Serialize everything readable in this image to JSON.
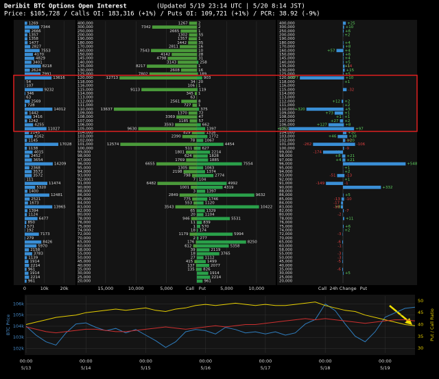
{
  "header": {
    "title": "Deribit BTC Options Open Interest",
    "updated": "(Updated 5/19 23:14 UTC | 5/20 8:14 JST)",
    "subtitle": "Price: $105,728 / Calls OI: 183,316 (+1%) / Puts OI: 109,721 (+1%) / PCR: 38.92 (-9%)"
  },
  "chart_data": [
    {
      "type": "bar_h",
      "color": "#3a8fd6",
      "xlim": [
        0,
        25000
      ],
      "xticks": [
        0,
        {
          "value": 10000,
          "label": "10k"
        },
        {
          "value": 20000,
          "label": "20k"
        }
      ],
      "values": [
        1269,
        7344,
        2666,
        1357,
        1358,
        1477,
        2827,
        7553,
        4170,
        4829,
        3401,
        8218,
        2624,
        7991,
        13616,
        54,
        107,
        9232,
        346,
        63,
        2569,
        728,
        14012,
        1442,
        3416,
        1242,
        4255,
        11027,
        2145,
        4162,
        1145,
        17028,
        1138,
        4015,
        2452,
        3654,
        14209,
        2368,
        3572,
        3572,
        111,
        11474,
        5320,
        1400,
        12481,
        2521,
        1673,
        13965,
        1394,
        1124,
        6477,
        850,
        571,
        192,
        7173,
        279,
        8426,
        5970,
        2158,
        3783,
        1139,
        1914,
        2214,
        961,
        1914,
        2214,
        961
      ]
    },
    {
      "type": "diverging_bar",
      "categories": [
        "400,000",
        "300,000",
        "250,000",
        "200,000",
        "190,000",
        "180,000",
        "170,000",
        "160,000",
        "150,000",
        "145,000",
        "140,000",
        "135,000",
        "130,000",
        "125,000",
        "120,000",
        "118,000",
        "116,000",
        "115,000",
        "114,000",
        "113,000",
        "112,000",
        "111,000",
        "110,000",
        "109,000",
        "108,000",
        "107,000",
        "106,000",
        "105,000",
        "104,000",
        "103,000",
        "102,000",
        "101,000",
        "100,000",
        "99,000",
        "98,000",
        "97,000",
        "96,000",
        "95,000",
        "94,000",
        "93,000",
        "92,000",
        "91,000",
        "90,000",
        "88,000",
        "86,000",
        "85,000",
        "84,000",
        "83,000",
        "82,000",
        "80,000",
        "78,000",
        "76,000",
        "75,000",
        "74,000",
        "72,000",
        "70,000",
        "65,000",
        "60,000",
        "58,000",
        "55,000",
        "50,000",
        "45,000",
        "40,000",
        "35,000",
        "30,000",
        "25,000",
        "20,000"
      ],
      "call_xlim": [
        0,
        16000
      ],
      "call_xticks": [
        {
          "value": 15000,
          "label": "15,000"
        },
        {
          "value": 10000,
          "label": "10,000"
        },
        {
          "value": 5000,
          "label": "5,000"
        }
      ],
      "put_xlim": [
        0,
        13000
      ],
      "put_xticks": [
        {
          "value": 5000,
          "label": "5,000"
        },
        {
          "value": 10000,
          "label": "10,000"
        }
      ],
      "series": [
        {
          "name": "Call",
          "color": "#4a9a3a",
          "values": [
            1267,
            7342,
            2665,
            1302,
            1357,
            1442,
            2811,
            7543,
            4142,
            4798,
            3143,
            8217,
            2608,
            7802,
            12713,
            34,
            106,
            9113,
            345,
            63,
            2561,
            727,
            13637,
            1370,
            3369,
            1185,
            3593,
            9630,
            829,
            2390,
            78,
            12574,
            511,
            1801,
            624,
            1769,
            6655,
            1305,
            2198,
            798,
            7,
            6482,
            1001,
            3,
            2849,
            775,
            553,
            3543,
            65,
            20,
            946,
            11,
            1,
            18,
            1179,
            2,
            176,
            612,
            39,
            18,
            27,
            415,
            137,
            135,
            0,
            0,
            0
          ]
        },
        {
          "name": "Put",
          "color": "#2aa04a",
          "values": [
            2,
            2,
            1,
            55,
            1,
            35,
            16,
            10,
            28,
            31,
            258,
            1,
            16,
            189,
            903,
            20,
            1,
            119,
            1,
            0,
            8,
            1,
            375,
            72,
            47,
            57,
            662,
            1397,
            1316,
            1772,
            1067,
            4454,
            627,
            2214,
            1828,
            1885,
            7554,
            1063,
            1374,
            2774,
            104,
            4992,
            4319,
            1397,
            9632,
            1746,
            1120,
            10422,
            1329,
            1104,
            5531,
            839,
            570,
            174,
            5994,
            277,
            8250,
            5358,
            2119,
            3765,
            1112,
            1499,
            2077,
            826,
            1914,
            2214,
            961
          ]
        }
      ]
    },
    {
      "type": "diverging_bar",
      "xlabel": "24h Change",
      "xlim": [
        -600,
        600
      ],
      "categories": [
        "400,000",
        "300,000",
        "250,000",
        "200,000",
        "190,000",
        "180,000",
        "170,000",
        "160,000",
        "150,000",
        "145,000",
        "140,000",
        "135,000",
        "130,000",
        "125,000",
        "120,000",
        "118,000",
        "116,000",
        "115,000",
        "114,000",
        "113,000",
        "112,000",
        "111,000",
        "110,000",
        "109,000",
        "108,000",
        "107,000",
        "106,000",
        "105,000",
        "104,000",
        "103,000",
        "102,000",
        "101,000",
        "100,000",
        "99,000",
        "98,000",
        "97,000",
        "96,000",
        "95,000",
        "94,000",
        "93,000",
        "92,000",
        "91,000",
        "90,000",
        "88,000",
        "86,000",
        "85,000",
        "84,000",
        "83,000",
        "82,000",
        "80,000",
        "78,000",
        "76,000",
        "75,000",
        "74,000",
        "72,000",
        "70,000",
        "65,000",
        "60,000",
        "58,000",
        "55,000",
        "50,000",
        "45,000",
        "40,000",
        "35,000",
        "30,000",
        "25,000",
        "20,000"
      ],
      "series": [
        {
          "name": "Call",
          "color": "#3a8fd6",
          "values": [
            0,
            0,
            0,
            0,
            0,
            0,
            0,
            57,
            0,
            0,
            0,
            -14,
            0,
            0,
            377,
            0,
            0,
            -32,
            0,
            0,
            12,
            0,
            320,
            73,
            1,
            27,
            127,
            472,
            0,
            46,
            -10,
            -106,
            -9,
            13,
            8,
            4,
            -25,
            0,
            0,
            -13,
            0,
            -1,
            -1,
            0,
            0,
            -10,
            0,
            8,
            -7,
            0,
            0,
            0,
            0,
            0,
            0,
            0,
            0,
            0,
            0,
            0,
            0,
            0,
            0,
            0,
            0,
            0,
            0
          ],
          "value_labels": [
            null,
            null,
            null,
            null,
            null,
            null,
            null,
            "+57",
            null,
            null,
            null,
            "-14",
            null,
            null,
            "+377",
            null,
            null,
            "-32",
            null,
            null,
            "+12",
            null,
            "+320",
            "+73",
            "+1",
            "+27",
            "+127",
            "+472",
            null,
            "+46",
            "-10",
            "-106",
            "-9",
            "+13",
            "+8",
            "+4",
            "-25",
            null,
            null,
            "-13",
            null,
            "-1",
            "-1",
            null,
            null,
            "-10",
            null,
            "+8",
            "-7",
            null,
            null,
            null,
            null,
            null,
            null,
            null,
            null,
            null,
            null,
            null,
            null,
            null,
            null,
            null,
            null,
            null,
            null
          ]
        },
        {
          "name": "Put",
          "color": "#3a8fd6",
          "values": [
            25,
            10,
            6,
            2,
            0,
            4,
            8,
            4,
            6,
            4,
            5,
            1,
            15,
            5,
            10,
            1,
            0,
            0,
            0,
            0,
            2,
            2,
            5,
            1,
            1,
            2,
            8,
            97,
            30,
            38,
            20,
            -262,
            0,
            -174,
            21,
            21,
            548,
            1,
            2,
            -51,
            1,
            -149,
            332,
            0,
            5,
            -13,
            -17,
            -18,
            0,
            -2,
            11,
            0,
            6,
            2,
            -3,
            0,
            -6,
            -1,
            0,
            -3,
            -3,
            -5,
            0,
            -6,
            5,
            0,
            0
          ],
          "value_labels": [
            "+25",
            "+10",
            "+6",
            "+2",
            null,
            "+4",
            "+8",
            "+4",
            "+6",
            "+4",
            "+5",
            "+1",
            "+15",
            "+5",
            "+10",
            "+1",
            null,
            null,
            null,
            null,
            "+2",
            "+2",
            "+5",
            "+1",
            "+1",
            "+2",
            "+8",
            "+97",
            "+30",
            "+38",
            "+20",
            "-262",
            null,
            "-174",
            "+21",
            "+21",
            "+548",
            "+1",
            "+2",
            "-51",
            "+1",
            "-149",
            "+332",
            null,
            "+5",
            "-13",
            "-17",
            "-18",
            null,
            "-2",
            "+11",
            null,
            "+6",
            "+2",
            "-3",
            null,
            "-6",
            "-1",
            null,
            "-3",
            "-3",
            "-5",
            null,
            "-6",
            "+5",
            null,
            null
          ]
        }
      ]
    },
    {
      "type": "line",
      "ylabel": "BTC Price",
      "y2label": "Put / Call Ratio",
      "grid": true,
      "x": [
        0,
        4,
        8,
        12,
        16,
        20,
        24,
        28,
        32,
        36,
        40,
        44,
        48,
        52,
        56,
        60,
        64,
        68,
        72,
        76,
        80,
        84,
        88,
        92,
        96,
        100,
        104,
        108,
        112,
        116,
        120,
        124,
        128,
        132,
        136,
        140,
        144,
        148,
        152,
        156
      ],
      "xlim": [
        0,
        156
      ],
      "xticks": [
        {
          "value": 0,
          "label": "5/13"
        },
        {
          "value": 24,
          "label": "5/14"
        },
        {
          "value": 48,
          "label": "5/15"
        },
        {
          "value": 72,
          "label": "5/16"
        },
        {
          "value": 96,
          "label": "5/17"
        },
        {
          "value": 120,
          "label": "5/18"
        },
        {
          "value": 144,
          "label": "5/19"
        }
      ],
      "xtick_times": [
        "00:00",
        "00:00",
        "00:00",
        "00:00",
        "00:00",
        "00:00",
        "00:00"
      ],
      "ylim": [
        101600,
        106700
      ],
      "yticks": [
        {
          "value": 102000,
          "label": "102k"
        },
        {
          "value": 103000,
          "label": "103k"
        },
        {
          "value": 104000,
          "label": "104k"
        },
        {
          "value": 105000,
          "label": "105k"
        },
        {
          "value": 106000,
          "label": "106k"
        }
      ],
      "y2lim": [
        28,
        52
      ],
      "y2ticks": [
        30,
        35,
        40,
        45,
        50
      ],
      "series": [
        {
          "color": "#2f7fc1",
          "values": [
            104000,
            103200,
            102600,
            102300,
            103400,
            104200,
            104300,
            103900,
            103600,
            103800,
            103400,
            103700,
            103200,
            102700,
            102100,
            102600,
            103500,
            103700,
            103600,
            103300,
            103900,
            103700,
            103400,
            103500,
            103300,
            103500,
            103200,
            103400,
            104200,
            104600,
            106000,
            105400,
            104200,
            103100,
            102600,
            103500,
            104800,
            105200,
            105600,
            105700
          ]
        },
        {
          "color": "#e8d000",
          "axis": "y2",
          "values": [
            40,
            41,
            42,
            43,
            43.5,
            44,
            45,
            45.5,
            46,
            46.5,
            46,
            46.5,
            47,
            46,
            45.5,
            46.5,
            47,
            48,
            48.5,
            48,
            48.5,
            49,
            48.5,
            48,
            48.5,
            48,
            48,
            48.5,
            49,
            49.5,
            48,
            47,
            46,
            45.5,
            44,
            43,
            42,
            41,
            40,
            39.5
          ]
        },
        {
          "color": "#d03030",
          "axis": "y2",
          "values": [
            39,
            38,
            37,
            36.5,
            37,
            37.5,
            38,
            38,
            37.5,
            37,
            37,
            37.5,
            38,
            38.5,
            39,
            38.5,
            38,
            38.5,
            39,
            39.5,
            39,
            39.5,
            40,
            40,
            40.5,
            41,
            41.5,
            42,
            42.5,
            42,
            42.5,
            42,
            41.5,
            41,
            40.5,
            41,
            41.5,
            42,
            42,
            41.5
          ]
        }
      ]
    }
  ]
}
